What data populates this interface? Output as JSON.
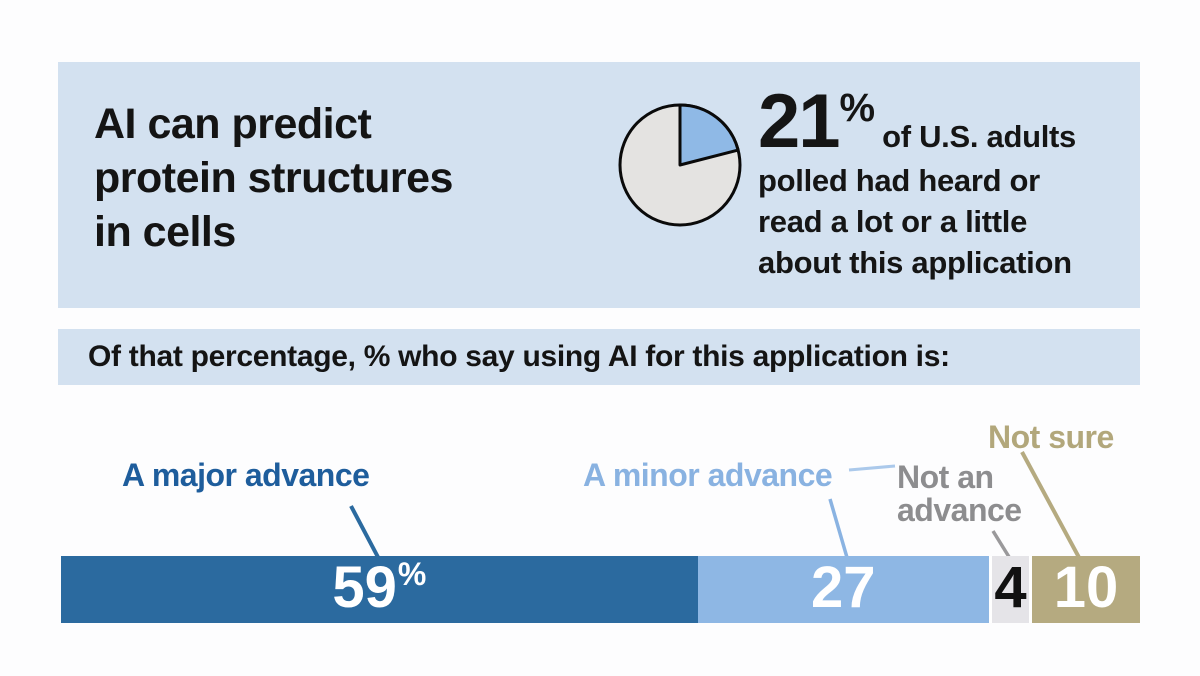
{
  "header": {
    "title_lines": [
      "AI can predict",
      "protein structures",
      "in cells"
    ],
    "stat": {
      "value": "21",
      "percent_sign": "%",
      "lead": "of U.S. adults",
      "lines": [
        "polled had heard or",
        "read a lot or a little",
        "about this application"
      ]
    }
  },
  "subtitle": "Of that percentage, % who say using AI for this application is:",
  "chart_data": [
    {
      "type": "pie",
      "title": "21% of U.S. adults polled had heard or read a lot or a little about this application",
      "labels": [
        "Heard or read a lot or a little",
        "Remainder"
      ],
      "values": [
        21,
        79
      ],
      "colors": [
        "#8fb9e6",
        "#e4e3e1"
      ],
      "start_angle_deg": 0,
      "direction": "clockwise",
      "outline_color": "#0a0a0a"
    },
    {
      "type": "bar",
      "stacked": true,
      "title": "Of that percentage, % who say using AI for this application is:",
      "xlim": [
        0,
        100
      ],
      "series": [
        {
          "label": "A major advance",
          "value": 59,
          "display": "59",
          "unit": "%",
          "color": "#2b6a9f",
          "label_color": "#1e5d9c",
          "value_text_color": "#ffffff"
        },
        {
          "label": "A minor advance",
          "value": 27,
          "display": "27",
          "unit": "",
          "color": "#8eb7e4",
          "label_color": "#89b2e1",
          "value_text_color": "#ffffff"
        },
        {
          "label": "Not an advance",
          "value": 4,
          "display": "4",
          "unit": "",
          "color": "#e5e4e8",
          "label_color": "#8d8d8f",
          "value_text_color": "#111111"
        },
        {
          "label": "Not sure",
          "value": 10,
          "display": "10",
          "unit": "",
          "color": "#b5aa80",
          "label_color": "#b2a77b",
          "value_text_color": "#ffffff"
        }
      ]
    }
  ],
  "colors": {
    "band_background": "#d3e1f0",
    "page_background": "#fdfdfe",
    "dark_blue": "#2b6a9f",
    "light_blue": "#8eb7e4",
    "gray_segment": "#e5e4e8",
    "tan": "#b5aa80",
    "text_black": "#151515"
  }
}
